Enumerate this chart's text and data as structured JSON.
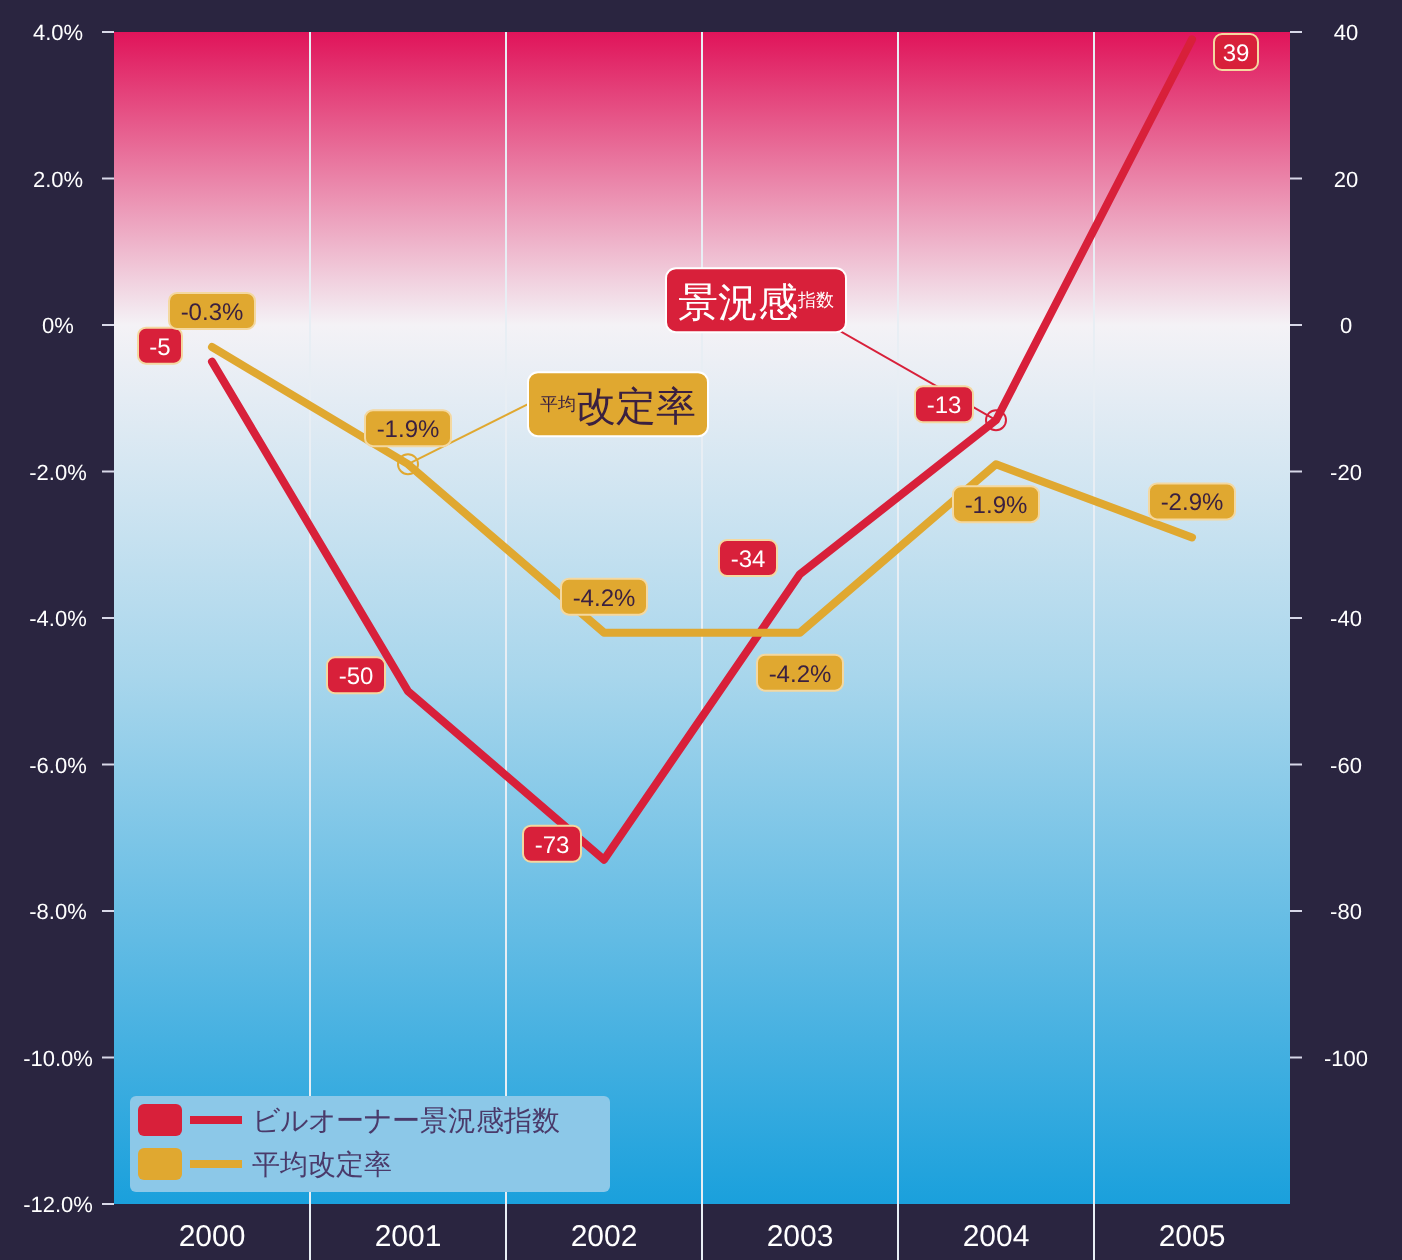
{
  "chart_data": {
    "type": "line",
    "categories": [
      "2000",
      "2001",
      "2002",
      "2003",
      "2004",
      "2005"
    ],
    "series": [
      {
        "name": "ビルオーナー景況感指数",
        "color": "#d8203a",
        "axis": "y2",
        "values": [
          -5,
          -50,
          -73,
          -34,
          -13,
          39
        ],
        "value_labels": [
          "-5",
          "-50",
          "-73",
          "-34",
          "-13",
          "39"
        ]
      },
      {
        "name": "平均改定率",
        "color": "#e0a830",
        "values": [
          -0.3,
          -1.9,
          -4.2,
          -4.2,
          -1.9,
          -2.9
        ],
        "value_labels": [
          "-0.3%",
          "-1.9%",
          "-4.2%",
          "-4.2%",
          "-1.9%",
          "-2.9%"
        ]
      }
    ],
    "ylim": [
      -12,
      4
    ],
    "yticks": [
      {
        "value": 4,
        "label": "4.0%"
      },
      {
        "value": 2,
        "label": "2.0%"
      },
      {
        "value": 0,
        "label": "0%"
      },
      {
        "value": -2,
        "label": "-2.0%"
      },
      {
        "value": -4,
        "label": "-4.0%"
      },
      {
        "value": -6,
        "label": "-6.0%"
      },
      {
        "value": -8,
        "label": "-8.0%"
      },
      {
        "value": -10,
        "label": "-10.0%"
      },
      {
        "value": -12,
        "label": "-12.0%"
      }
    ],
    "y2lim": [
      -120,
      40
    ],
    "y2ticks": [
      40,
      20,
      0,
      -20,
      -40,
      -60,
      -80,
      -100
    ],
    "annotations": [
      {
        "text": "景況感$^{指数}$",
        "x": "2004",
        "y": -1.3
      },
      {
        "text": "$^{平均}$改定率",
        "x": "2001",
        "y": -1.9
      }
    ],
    "grid": "x",
    "legend": "bottom left",
    "marker": "none",
    "line_style": "solid"
  }
}
